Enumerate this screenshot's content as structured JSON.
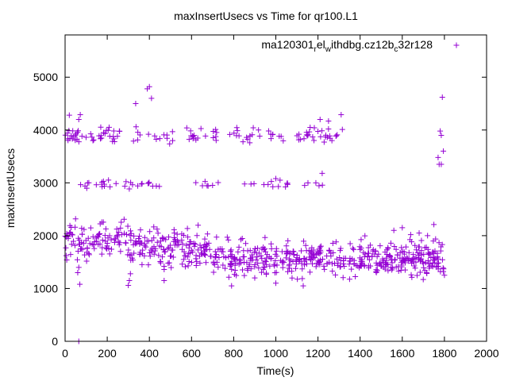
{
  "chart_data": {
    "type": "scatter",
    "title": "maxInsertUsecs vs Time for qr100.L1",
    "xlabel": "Time(s)",
    "ylabel": "maxInsertUsecs",
    "xlim": [
      0,
      2000
    ],
    "ylim": [
      0,
      5800
    ],
    "xticks": [
      0,
      200,
      400,
      600,
      800,
      1000,
      1200,
      1400,
      1600,
      1800,
      2000
    ],
    "yticks": [
      0,
      1000,
      2000,
      3000,
      4000,
      5000
    ],
    "grid": false,
    "legend": {
      "placement": "top-right",
      "label_parts": [
        "ma120301",
        "r",
        "el",
        "w",
        "ithdbg.cz12b",
        "c",
        "32r128"
      ]
    },
    "series": [
      {
        "name": "ma120301_rel_withdbg.cz12b_c32r128",
        "color": "#9400d3",
        "marker": "plus",
        "bands": [
          {
            "x_range": [
              0,
              1800
            ],
            "y_center": 1650,
            "y_spread": 280,
            "count": 720
          },
          {
            "x_range": [
              0,
              1320
            ],
            "y_center": 3900,
            "y_spread": 120,
            "count": 150
          },
          {
            "x_range": [
              70,
              1270
            ],
            "y_center": 2970,
            "y_spread": 60,
            "count": 70
          }
        ],
        "outliers": [
          {
            "x": 20,
            "y": 4280
          },
          {
            "x": 65,
            "y": 4200
          },
          {
            "x": 72,
            "y": 4290
          },
          {
            "x": 335,
            "y": 4500
          },
          {
            "x": 390,
            "y": 4780
          },
          {
            "x": 400,
            "y": 4820
          },
          {
            "x": 410,
            "y": 4600
          },
          {
            "x": 1310,
            "y": 4290
          },
          {
            "x": 1210,
            "y": 4200
          },
          {
            "x": 1250,
            "y": 4170
          },
          {
            "x": 1770,
            "y": 3480
          },
          {
            "x": 1775,
            "y": 3350
          },
          {
            "x": 1780,
            "y": 3980
          },
          {
            "x": 1785,
            "y": 3900
          },
          {
            "x": 1790,
            "y": 4620
          },
          {
            "x": 1795,
            "y": 3600
          },
          {
            "x": 1785,
            "y": 3350
          },
          {
            "x": 1220,
            "y": 3180
          },
          {
            "x": 1190,
            "y": 3000
          },
          {
            "x": 65,
            "y": 0
          },
          {
            "x": 70,
            "y": 1080
          },
          {
            "x": 60,
            "y": 1300
          },
          {
            "x": 65,
            "y": 1400
          },
          {
            "x": 280,
            "y": 2310
          },
          {
            "x": 300,
            "y": 1060
          },
          {
            "x": 305,
            "y": 1150
          },
          {
            "x": 310,
            "y": 1280
          },
          {
            "x": 470,
            "y": 1150
          },
          {
            "x": 790,
            "y": 1050
          },
          {
            "x": 1130,
            "y": 1050
          },
          {
            "x": 1750,
            "y": 2210
          },
          {
            "x": 1560,
            "y": 2100
          },
          {
            "x": 1680,
            "y": 2050
          },
          {
            "x": 1720,
            "y": 2000
          },
          {
            "x": 1800,
            "y": 1250
          },
          {
            "x": 1000,
            "y": 1100
          },
          {
            "x": 900,
            "y": 1200
          },
          {
            "x": 1600,
            "y": 2150
          },
          {
            "x": 1640,
            "y": 2020
          },
          {
            "x": 1000,
            "y": 3080
          },
          {
            "x": 1020,
            "y": 3050
          }
        ]
      }
    ]
  }
}
